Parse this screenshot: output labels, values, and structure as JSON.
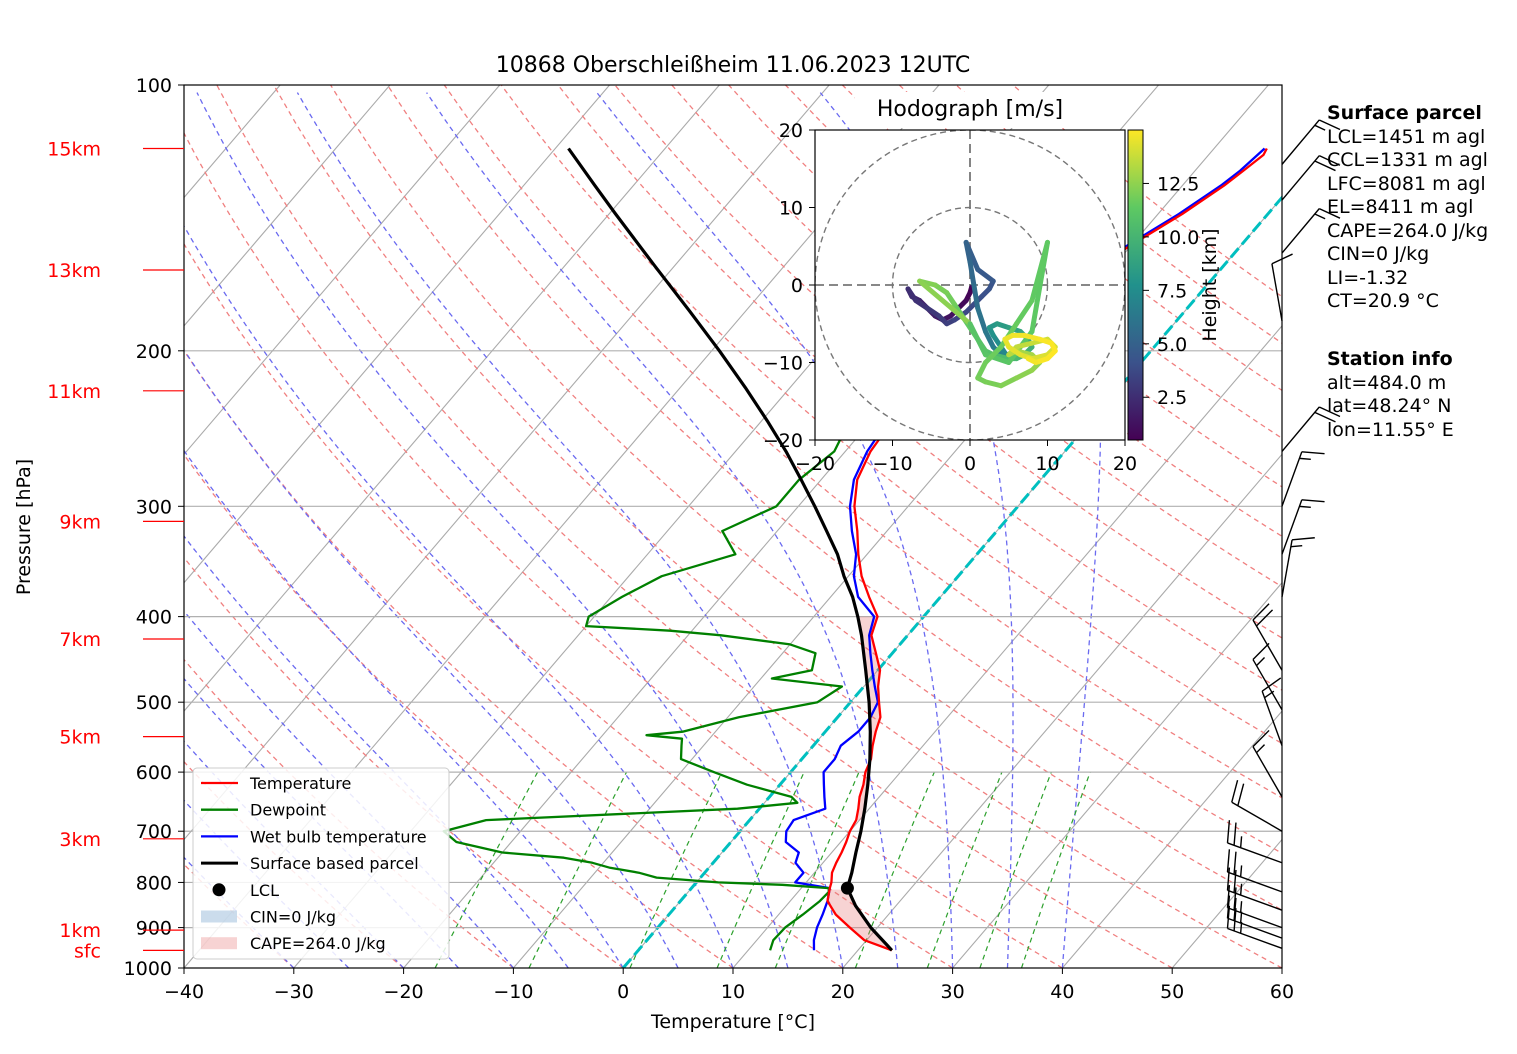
{
  "title": "10868 Oberschleißheim 11.06.2023 12UTC",
  "chart_data": {
    "type": "line",
    "subtype": "skew-T log-P sounding",
    "xlabel": "Temperature [°C]",
    "ylabel": "Pressure [hPa]",
    "xlim": [
      -40,
      60
    ],
    "ylim": [
      1000,
      100
    ],
    "yscale": "log",
    "x_ticks": [
      -40,
      -30,
      -20,
      -10,
      0,
      10,
      20,
      30,
      40,
      50,
      60
    ],
    "x_tick_labels": [
      "−40",
      "−30",
      "−20",
      "−10",
      "0",
      "10",
      "20",
      "30",
      "40",
      "50",
      "60"
    ],
    "p_ticks": [
      1000,
      900,
      800,
      700,
      600,
      500,
      400,
      300,
      200,
      100
    ],
    "height_labels": [
      {
        "label": "sfc",
        "p": 955
      },
      {
        "label": "1km",
        "p": 906
      },
      {
        "label": "3km",
        "p": 714
      },
      {
        "label": "5km",
        "p": 547
      },
      {
        "label": "7km",
        "p": 424
      },
      {
        "label": "9km",
        "p": 312
      },
      {
        "label": "11km",
        "p": 222
      },
      {
        "label": "13km",
        "p": 162
      },
      {
        "label": "15km",
        "p": 118
      }
    ],
    "colors": {
      "temperature": "#ff0000",
      "dewpoint": "#008000",
      "wetbulb": "#0000ff",
      "parcel": "#000000",
      "zero_isotherm": "#00bfbf",
      "height_labels": "#ff0000"
    },
    "series": [
      {
        "name": "Temperature",
        "p": [
          955,
          930,
          900,
          870,
          840,
          812,
          800,
          780,
          760,
          740,
          720,
          700,
          680,
          660,
          640,
          620,
          600,
          580,
          560,
          540,
          520,
          500,
          480,
          460,
          440,
          420,
          400,
          380,
          360,
          340,
          320,
          300,
          280,
          260,
          240,
          220,
          210,
          200,
          190,
          180,
          170,
          160,
          150,
          140,
          130,
          125,
          120,
          118
        ],
        "t": [
          23.1,
          19.8,
          17.5,
          15.2,
          13.4,
          12.6,
          12.3,
          11.6,
          11.2,
          10.9,
          10.5,
          10.0,
          9.7,
          9.0,
          8.2,
          7.6,
          6.8,
          6.3,
          5.4,
          4.6,
          3.9,
          2.6,
          1.3,
          0.2,
          -1.5,
          -3.3,
          -4.2,
          -6.5,
          -8.8,
          -10.8,
          -12.7,
          -14.9,
          -16.7,
          -17.7,
          -18.1,
          -18.2,
          -18.0,
          -17.6,
          -16.6,
          -14.3,
          -12.7,
          -11.4,
          -9.7,
          -7.8,
          -6.2,
          -5.6,
          -5.0,
          -5.2
        ]
      },
      {
        "name": "Dewpoint",
        "p": [
          955,
          930,
          900,
          870,
          840,
          820,
          812,
          805,
          800,
          790,
          780,
          770,
          760,
          750,
          740,
          720,
          700,
          680,
          660,
          650,
          640,
          620,
          600,
          580,
          560,
          550,
          545,
          540,
          530,
          520,
          500,
          480,
          470,
          460,
          440,
          430,
          420,
          415,
          410,
          400,
          380,
          360,
          340,
          320,
          300,
          280,
          260,
          240,
          230,
          220,
          210,
          200,
          190,
          180,
          170,
          160,
          150,
          140,
          130,
          125,
          118
        ],
        "t": [
          12.0,
          11.5,
          11.6,
          12.2,
          12.7,
          12.8,
          12.5,
          8.0,
          2.0,
          -4.0,
          -6.0,
          -9.0,
          -11.0,
          -14.0,
          -20.0,
          -25.0,
          -27.0,
          -24.0,
          -2.0,
          3.0,
          2.0,
          -3.0,
          -7.0,
          -11.0,
          -12.0,
          -12.5,
          -16.0,
          -13.0,
          -11.0,
          -9.0,
          -3.0,
          -2.0,
          -9.0,
          -6.0,
          -7.0,
          -10.0,
          -17.0,
          -22.0,
          -30.0,
          -30.5,
          -29.0,
          -27.0,
          -22.0,
          -25.0,
          -22.0,
          -22.0,
          -21.0,
          -22.0,
          -25.0,
          -21.5,
          -24.0,
          -25.0,
          -27.0,
          -29.0,
          -30.0,
          -30.0,
          -29.5,
          -28.5,
          -27.5,
          -27.0,
          -24.0
        ]
      },
      {
        "name": "Wet bulb temperature",
        "p": [
          955,
          930,
          900,
          870,
          840,
          812,
          800,
          780,
          760,
          740,
          720,
          700,
          680,
          660,
          640,
          620,
          600,
          580,
          560,
          540,
          520,
          500,
          480,
          460,
          440,
          420,
          400,
          380,
          360,
          340,
          320,
          300,
          280,
          260,
          240,
          220,
          210,
          200,
          190,
          180,
          170,
          160,
          150,
          140,
          130,
          125,
          118
        ],
        "t": [
          16.0,
          15.2,
          14.5,
          14.0,
          13.4,
          12.6,
          9.0,
          9.0,
          7.5,
          7.0,
          5.0,
          4.2,
          4.0,
          6.0,
          5.0,
          4.0,
          3.0,
          3.0,
          2.5,
          3.0,
          3.0,
          2.5,
          1.0,
          -0.5,
          -2.0,
          -3.5,
          -4.5,
          -7.5,
          -9.5,
          -11.0,
          -13.2,
          -15.3,
          -17.0,
          -18.0,
          -18.5,
          -18.5,
          -18.3,
          -17.9,
          -16.9,
          -14.6,
          -13.0,
          -11.7,
          -10.0,
          -8.1,
          -6.5,
          -5.9,
          -5.4
        ]
      },
      {
        "name": "Surface based parcel",
        "p": [
          955,
          900,
          850,
          812,
          780,
          740,
          700,
          660,
          620,
          580,
          540,
          500,
          460,
          420,
          400,
          380,
          360,
          340,
          320,
          300,
          280,
          260,
          240,
          220,
          200,
          180,
          160,
          140,
          130,
          118
        ],
        "t": [
          23.1,
          19.4,
          16.3,
          14.2,
          13.4,
          12.2,
          11.0,
          9.6,
          8.0,
          6.2,
          4.1,
          1.7,
          -1.1,
          -4.2,
          -6.0,
          -8.0,
          -10.4,
          -12.7,
          -15.5,
          -18.5,
          -21.8,
          -25.4,
          -29.5,
          -34.1,
          -39.3,
          -45.2,
          -51.9,
          -59.4,
          -63.5,
          -68.8
        ]
      }
    ],
    "lcl_point": {
      "t": 14.2,
      "p": 812
    },
    "legend": {
      "placement": "lower left",
      "entries": [
        "Temperature",
        "Dewpoint",
        "Wet bulb temperature",
        "Surface based parcel",
        "LCL",
        "CIN=0 J/kg",
        "CAPE=264.0 J/kg"
      ]
    },
    "wind_barbs": [
      {
        "p": 950,
        "ws": 12.5,
        "wd": 290
      },
      {
        "p": 925,
        "ws": 12.5,
        "wd": 290
      },
      {
        "p": 900,
        "ws": 12.5,
        "wd": 290
      },
      {
        "p": 860,
        "ws": 12.5,
        "wd": 290
      },
      {
        "p": 820,
        "ws": 12.5,
        "wd": 290
      },
      {
        "p": 760,
        "ws": 12.5,
        "wd": 290
      },
      {
        "p": 700,
        "ws": 10,
        "wd": 300
      },
      {
        "p": 640,
        "ws": 7.5,
        "wd": 330
      },
      {
        "p": 560,
        "ws": 7.5,
        "wd": 340
      },
      {
        "p": 510,
        "ws": 7.5,
        "wd": 330
      },
      {
        "p": 460,
        "ws": 10,
        "wd": 330
      },
      {
        "p": 380,
        "ws": 7.5,
        "wd": 10
      },
      {
        "p": 340,
        "ws": 7.5,
        "wd": 20
      },
      {
        "p": 300,
        "ws": 7.5,
        "wd": 20
      },
      {
        "p": 260,
        "ws": 10,
        "wd": 40
      },
      {
        "p": 185,
        "ws": 5,
        "wd": 350
      },
      {
        "p": 155,
        "ws": 7.5,
        "wd": 40
      },
      {
        "p": 135,
        "ws": 10,
        "wd": 40
      },
      {
        "p": 123,
        "ws": 7.5,
        "wd": 40
      }
    ],
    "hodograph": {
      "title": "Hodograph [m/s]",
      "xlim": [
        -20,
        20
      ],
      "ylim": [
        -20,
        20
      ],
      "ticks": [
        -20,
        -10,
        0,
        10,
        20
      ],
      "tick_labels": [
        "−20",
        "−10",
        "0",
        "10",
        "20"
      ],
      "colorbar_label": "Height [km]",
      "colorbar_ticks": [
        2.5,
        5.0,
        7.5,
        10.0,
        12.5
      ],
      "colorbar_range": [
        0.5,
        15
      ],
      "u": [
        0.2,
        0.0,
        -0.5,
        -1.5,
        -2.5,
        -3.5,
        -4.5,
        -5.5,
        -6.5,
        -7.5,
        -8.0,
        -7.0,
        -5.5,
        -4.0,
        -3.0,
        -2.0,
        -0.5,
        0.5,
        1.5,
        2.5,
        3.0,
        1.0,
        -0.5,
        0.0,
        0.5,
        1.0,
        2.0,
        3.0,
        4.0,
        5.0,
        4.0,
        3.0,
        2.5,
        3.5,
        5.0,
        6.5,
        7.5,
        8.0,
        7.0,
        6.0,
        5.0,
        3.0,
        2.0,
        1.0,
        0.0,
        -1.0,
        -2.0,
        -3.0,
        -4.5,
        -6.5,
        0.0,
        2.0,
        5.0,
        8.0,
        10.0,
        8.0,
        6.0,
        4.0,
        2.0,
        1.0,
        2.0,
        4.0,
        6.0,
        8.0,
        9.0,
        8.0,
        6.0,
        5.0,
        6.0,
        8.0,
        10.0,
        11.0,
        10.0,
        8.0,
        6.5,
        5.0,
        4.5,
        5.5,
        7.0,
        9.0,
        10.5,
        11.0,
        10.0,
        8.5,
        7.5
      ],
      "v": [
        -0.3,
        -1.0,
        -2.0,
        -3.0,
        -4.0,
        -4.5,
        -4.0,
        -3.0,
        -2.0,
        -1.5,
        -0.5,
        -2.0,
        -3.0,
        -4.0,
        -5.0,
        -4.5,
        -3.5,
        -2.5,
        -1.5,
        -0.5,
        0.5,
        2.0,
        5.5,
        3.0,
        0.0,
        -3.0,
        -6.0,
        -8.0,
        -9.0,
        -9.5,
        -8.0,
        -6.5,
        -5.5,
        -5.0,
        -5.5,
        -6.0,
        -7.0,
        -8.0,
        -9.0,
        -9.5,
        -9.5,
        -9.0,
        -8.5,
        -7.0,
        -5.5,
        -4.0,
        -2.5,
        -1.0,
        0.0,
        0.5,
        -5.0,
        -9.0,
        -10.0,
        -6.0,
        5.5,
        -2.0,
        -5.0,
        -8.0,
        -10.0,
        -12.0,
        -12.5,
        -13.0,
        -12.0,
        -11.0,
        -10.0,
        -9.0,
        -8.5,
        -9.0,
        -8.0,
        -7.5,
        -7.0,
        -8.0,
        -9.0,
        -9.5,
        -9.0,
        -8.0,
        -7.0,
        -6.5,
        -6.5,
        -7.0,
        -7.5,
        -8.5,
        -9.5,
        -10.0,
        -9.5
      ],
      "height_km": [
        0.5,
        0.7,
        0.9,
        1.1,
        1.3,
        1.5,
        1.7,
        1.9,
        2.1,
        2.3,
        2.5,
        2.7,
        2.9,
        3.1,
        3.3,
        3.5,
        3.7,
        3.9,
        4.1,
        4.3,
        4.5,
        4.8,
        5.1,
        5.4,
        5.7,
        6.0,
        6.3,
        6.6,
        6.9,
        7.2,
        7.5,
        7.8,
        8.1,
        8.4,
        8.7,
        9.0,
        9.3,
        9.6,
        9.9,
        10.2,
        10.5,
        10.8,
        11.0,
        11.2,
        11.4,
        11.6,
        11.8,
        12.0,
        12.2,
        12.4,
        11.0,
        11.1,
        11.2,
        11.3,
        11.4,
        11.5,
        11.6,
        11.7,
        11.8,
        11.9,
        12.0,
        12.2,
        12.4,
        12.6,
        12.8,
        13.0,
        13.2,
        13.4,
        13.6,
        13.8,
        14.0,
        14.1,
        14.2,
        14.3,
        14.4,
        14.5,
        14.6,
        14.7,
        14.8,
        14.9,
        14.95,
        15.0,
        14.9,
        14.8,
        14.7
      ]
    }
  },
  "info": {
    "surface_parcel_header": "Surface parcel",
    "surface_parcel_lines": [
      "LCL=1451 m agl",
      "CCL=1331 m agl",
      "LFC=8081 m agl",
      "EL=8411 m agl",
      "CAPE=264.0 J/kg",
      "CIN=0 J/kg",
      "LI=-1.32",
      "CT=20.9 °C"
    ],
    "station_header": "Station info",
    "station_lines": [
      "alt=484.0 m",
      "lat=48.24° N",
      "lon=11.55° E"
    ]
  }
}
